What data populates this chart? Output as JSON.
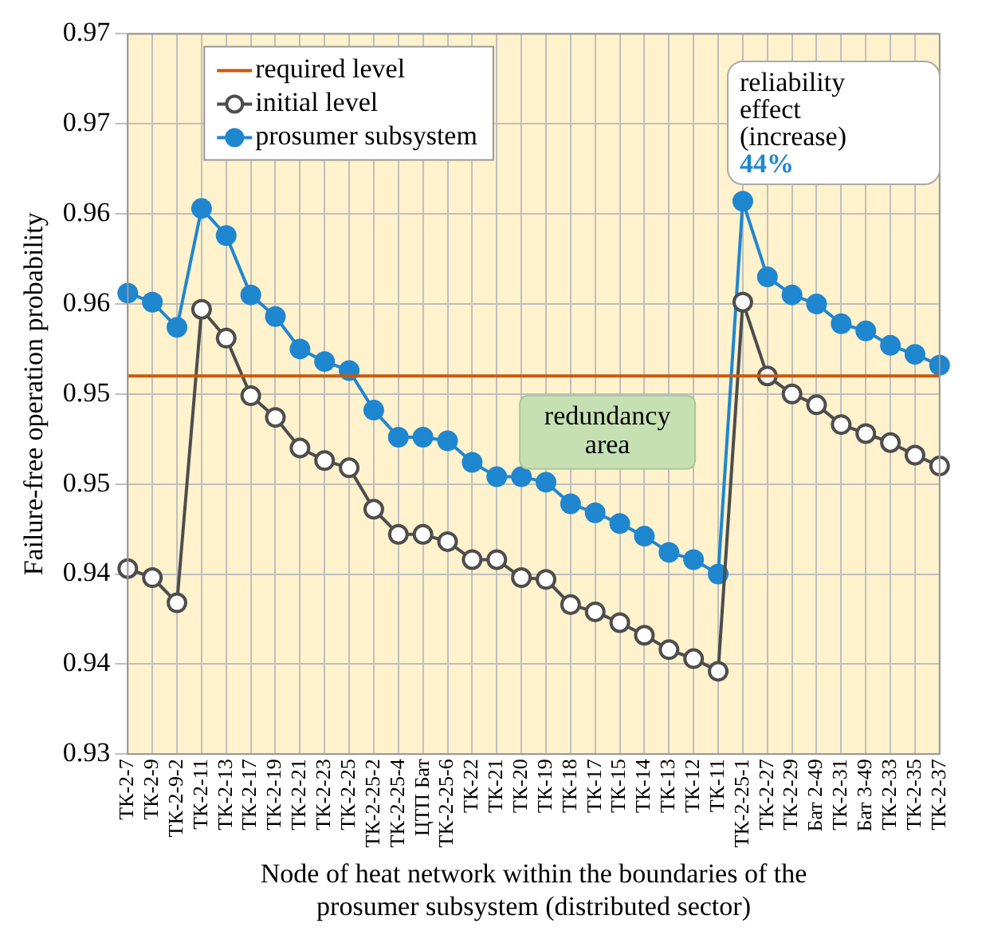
{
  "chart_data": {
    "type": "line",
    "xlabel": "Node of heat network within the boundaries of the prosumer subsystem (distributed sector)",
    "ylabel": "Failure-free operation probability",
    "categories": [
      "ТК-2-7",
      "ТК-2-9",
      "ТК-2-9-2",
      "ТК-2-11",
      "ТК-2-13",
      "ТК-2-17",
      "ТК-2-19",
      "ТК-2-21",
      "ТК-2-23",
      "ТК-2-25",
      "ТК-2-25-2",
      "ТК-2-25-4",
      "ЦТП Бат",
      "ТК-2-25-6",
      "ТК-22",
      "ТК-21",
      "ТК-20",
      "ТК-19",
      "ТК-18",
      "ТК-17",
      "ТК-15",
      "ТК-14",
      "ТК-13",
      "ТК-12",
      "ТК-11",
      "ТК-2-25-1",
      "ТК-2-27",
      "ТК-2-29",
      "Бат 2-49",
      "ТК-2-31",
      "Бат 3-49",
      "ТК-2-33",
      "ТК-2-35",
      "ТК-2-37"
    ],
    "series": [
      {
        "name": "required level",
        "color": "#c55a11",
        "marker": "none",
        "values": [
          0.951,
          0.951,
          0.951,
          0.951,
          0.951,
          0.951,
          0.951,
          0.951,
          0.951,
          0.951,
          0.951,
          0.951,
          0.951,
          0.951,
          0.951,
          0.951,
          0.951,
          0.951,
          0.951,
          0.951,
          0.951,
          0.951,
          0.951,
          0.951,
          0.951,
          0.951,
          0.951,
          0.951,
          0.951,
          0.951,
          0.951,
          0.951,
          0.951,
          0.951
        ]
      },
      {
        "name": "initial level",
        "color": "#4d4d4d",
        "marker": "circle",
        "values": [
          0.9403,
          0.9398,
          0.9384,
          0.9547,
          0.9531,
          0.9499,
          0.9487,
          0.947,
          0.9463,
          0.9459,
          0.9436,
          0.9422,
          0.9422,
          0.9418,
          0.9408,
          0.9408,
          0.9398,
          0.9397,
          0.9383,
          0.9379,
          0.9373,
          0.9366,
          0.9358,
          0.9353,
          0.9346,
          0.9551,
          0.951,
          0.95,
          0.9494,
          0.9483,
          0.9478,
          0.9473,
          0.9466,
          0.946
        ]
      },
      {
        "name": "prosumer subsystem",
        "color": "#1f86d0",
        "marker": "circle",
        "values": [
          0.9556,
          0.9551,
          0.9537,
          0.9603,
          0.9588,
          0.9555,
          0.9543,
          0.9525,
          0.9518,
          0.9513,
          0.9491,
          0.9476,
          0.9476,
          0.9474,
          0.9462,
          0.9454,
          0.9454,
          0.9451,
          0.9439,
          0.9434,
          0.9428,
          0.9421,
          0.9412,
          0.9408,
          0.94,
          0.9607,
          0.9565,
          0.9555,
          0.955,
          0.9539,
          0.9535,
          0.9527,
          0.9522,
          0.9516
        ]
      }
    ],
    "ylim": [
      0.93,
      0.97
    ],
    "yticks": [
      {
        "value": 0.93,
        "label": "0.93"
      },
      {
        "value": 0.935,
        "label": "0.94"
      },
      {
        "value": 0.94,
        "label": "0.94"
      },
      {
        "value": 0.945,
        "label": "0.95"
      },
      {
        "value": 0.95,
        "label": "0.95"
      },
      {
        "value": 0.955,
        "label": "0.96"
      },
      {
        "value": 0.96,
        "label": "0.96"
      },
      {
        "value": 0.965,
        "label": "0.97"
      },
      {
        "value": 0.97,
        "label": "0.97"
      }
    ],
    "grid": true,
    "legend": "top left",
    "annotations": [
      "reliability effect (increase)",
      "44%",
      "redundancy area"
    ]
  }
}
